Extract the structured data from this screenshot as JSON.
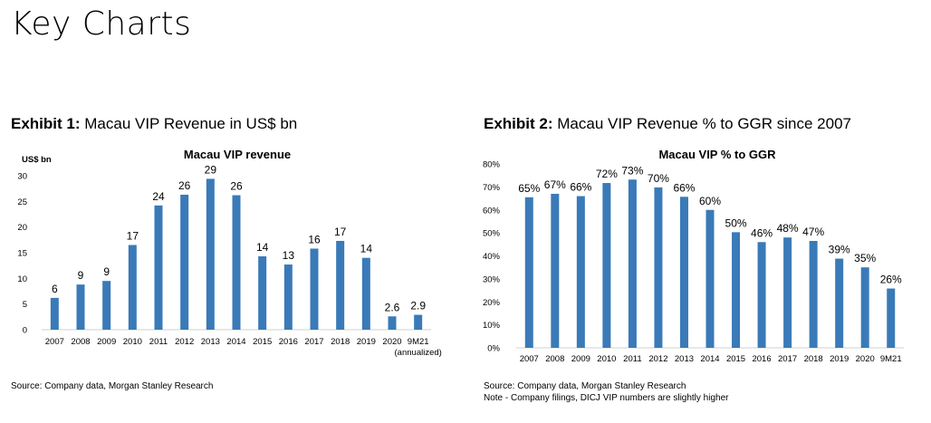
{
  "page_title": "Key Charts",
  "exhibits": [
    {
      "label": "Exhibit 1:",
      "title": "Macau VIP Revenue in US$ bn",
      "source": "Source: Company data, Morgan Stanley Research",
      "note": ""
    },
    {
      "label": "Exhibit 2:",
      "title": "Macau VIP Revenue % to GGR since 2007",
      "source": "Source: Company data, Morgan Stanley Research",
      "note": "Note - Company filings, DICJ VIP numbers are slightly higher"
    }
  ],
  "colors": {
    "bar": "#3a7ab8",
    "axis": "#d0d0d0"
  },
  "chart_data": [
    {
      "type": "bar",
      "title": "Macau VIP revenue",
      "ylabel": "US$ bn",
      "xlabel": "",
      "categories": [
        "2007",
        "2008",
        "2009",
        "2010",
        "2011",
        "2012",
        "2013",
        "2014",
        "2015",
        "2016",
        "2017",
        "2018",
        "2019",
        "2020",
        "9M21"
      ],
      "category_sublabels": {
        "9M21": "(annualized)"
      },
      "values": [
        6.2,
        8.8,
        9.5,
        16.5,
        24.2,
        26.3,
        29.4,
        26.2,
        14.3,
        12.7,
        15.8,
        17.3,
        14.0,
        2.6,
        2.9
      ],
      "data_labels": [
        "6",
        "9",
        "9",
        "17",
        "24",
        "26",
        "29",
        "26",
        "14",
        "13",
        "16",
        "17",
        "14",
        "2.6",
        "2.9"
      ],
      "ylim": [
        0,
        30
      ],
      "yticks": [
        0,
        5,
        10,
        15,
        20,
        25,
        30
      ],
      "ytick_labels": [
        "0",
        "5",
        "10",
        "15",
        "20",
        "25",
        "30"
      ],
      "grid": false,
      "legend": "none"
    },
    {
      "type": "bar",
      "title": "Macau VIP % to GGR",
      "ylabel": "",
      "xlabel": "",
      "categories": [
        "2007",
        "2008",
        "2009",
        "2010",
        "2011",
        "2012",
        "2013",
        "2014",
        "2015",
        "2016",
        "2017",
        "2018",
        "2019",
        "2020",
        "9M21"
      ],
      "values": [
        65.5,
        67,
        66,
        71.7,
        73.2,
        69.8,
        65.7,
        60,
        50.3,
        46,
        48,
        46.5,
        38.8,
        35,
        25.8
      ],
      "data_labels": [
        "65%",
        "67%",
        "66%",
        "72%",
        "73%",
        "70%",
        "66%",
        "60%",
        "50%",
        "46%",
        "48%",
        "47%",
        "39%",
        "35%",
        "26%"
      ],
      "ylim": [
        0,
        80
      ],
      "yticks": [
        0,
        10,
        20,
        30,
        40,
        50,
        60,
        70,
        80
      ],
      "ytick_labels": [
        "0%",
        "10%",
        "20%",
        "30%",
        "40%",
        "50%",
        "60%",
        "70%",
        "80%"
      ],
      "grid": false,
      "legend": "none"
    }
  ]
}
